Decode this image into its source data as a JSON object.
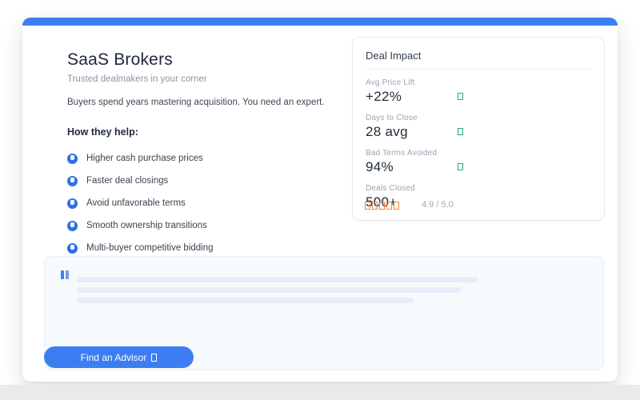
{
  "hero": {
    "title": "SaaS Brokers",
    "subtitle": "Trusted dealmakers in your corner",
    "lead": "Buyers spend years mastering acquisition. You need an expert.",
    "list_heading": "How they help:",
    "benefits": [
      "Higher cash purchase prices",
      "Faster deal closings",
      "Avoid unfavorable terms",
      "Smooth ownership transitions",
      "Multi-buyer competitive bidding"
    ]
  },
  "deal_impact": {
    "title": "Deal Impact",
    "metrics": [
      {
        "label": "Avg Price Lift",
        "value": "+22%"
      },
      {
        "label": "Days to Close",
        "value": "28 avg"
      },
      {
        "label": "Bad Terms Avoided",
        "value": "94%"
      },
      {
        "label": "Deals Closed",
        "value": "500+",
        "rating_text": "4.9 / 5.0",
        "star_glyph_count": 5
      }
    ]
  },
  "testimonial": {
    "skeleton_line_count": 3
  },
  "cta": {
    "label": "Find an Advisor"
  },
  "colors": {
    "accent_blue": "#3c7ef2",
    "metric_glyph_green": "#2aa489",
    "star_glyph_orange": "#ee8640",
    "panel_blue_tint": "#f7fafd"
  }
}
